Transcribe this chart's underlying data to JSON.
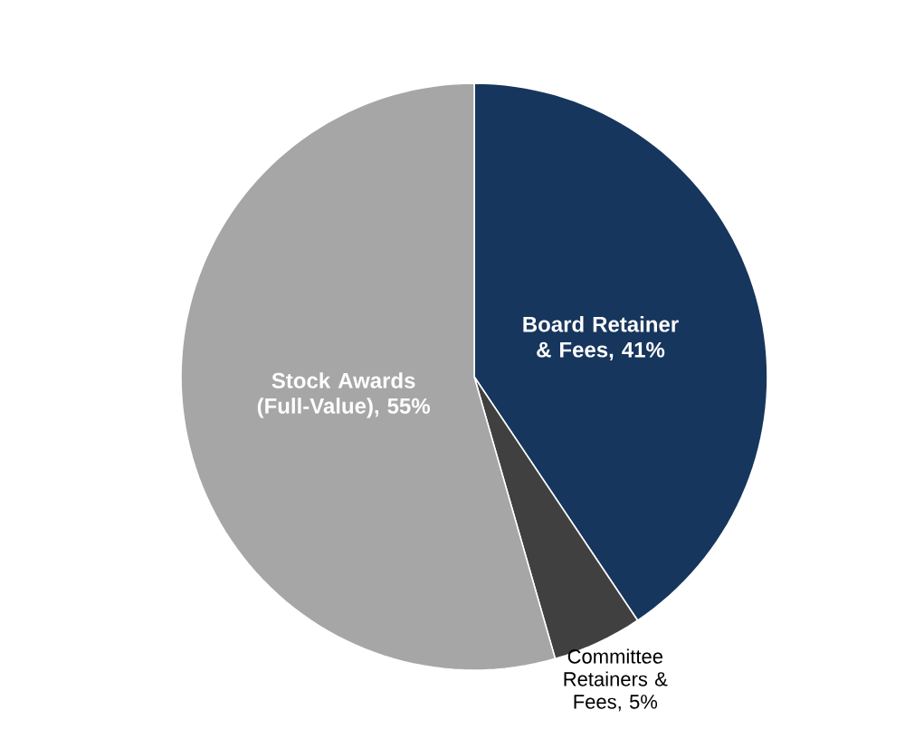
{
  "chart_data": {
    "type": "pie",
    "categories": [
      "Board Retainer & Fees",
      "Committee Retainers & Fees",
      "Stock Awards (Full-Value)"
    ],
    "values": [
      41,
      5,
      55
    ],
    "colors": [
      "#17365d",
      "#404040",
      "#a6a6a6"
    ],
    "value_labels": [
      ", 41%",
      ", 5%",
      ", 55%"
    ]
  }
}
